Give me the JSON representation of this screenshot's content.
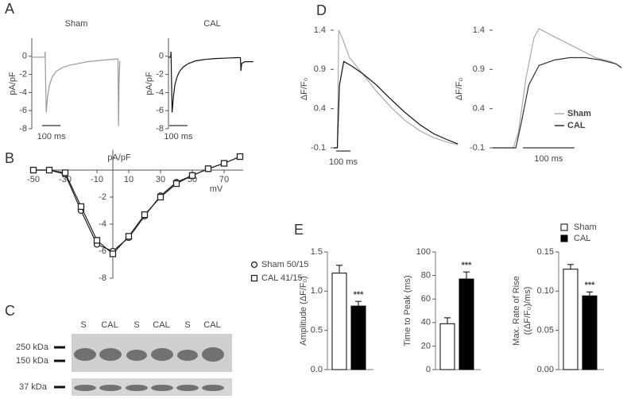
{
  "panel_labels": [
    "A",
    "B",
    "C",
    "D",
    "E"
  ],
  "blot": {
    "lanes": [
      "S",
      "CAL",
      "S",
      "CAL",
      "S",
      "CAL"
    ],
    "markers": [
      "250 kDa",
      "150 kDa",
      "37 kDa"
    ]
  },
  "chart_data": [
    {
      "type": "trace",
      "title": "Sham",
      "ylabel": "pA/pF",
      "axes": true,
      "xlim": [
        0,
        480
      ],
      "ylim": [
        -8,
        2
      ],
      "yticks": [
        0,
        -2,
        -4,
        -6,
        -8
      ],
      "series": [
        {
          "color": "#9a9a9a",
          "x": [
            0,
            70,
            72,
            75,
            78,
            85,
            95,
            110,
            130,
            160,
            200,
            250,
            300,
            350,
            400,
            460,
            465,
            468,
            471,
            475
          ],
          "values": [
            -0.1,
            -0.1,
            0.5,
            -3,
            -6.2,
            -4.5,
            -3.2,
            -2.3,
            -1.7,
            -1.3,
            -1.0,
            -0.8,
            -0.6,
            -0.5,
            -0.4,
            -0.3,
            -0.3,
            -7.7,
            -2.5,
            -0.5
          ]
        }
      ],
      "scale_bar": {
        "value": 100,
        "label": "100 ms"
      }
    },
    {
      "type": "trace",
      "title": "CAL",
      "ylabel": "pA/pF",
      "axes": true,
      "xlim": [
        0,
        480
      ],
      "ylim": [
        -8,
        2
      ],
      "yticks": [
        0,
        -2,
        -4,
        -6,
        -8
      ],
      "series": [
        {
          "color": "#111111",
          "x": [
            0,
            12,
            14,
            17,
            20,
            27,
            35,
            45,
            60,
            80,
            110,
            150,
            200,
            260,
            320,
            380,
            395,
            398,
            402,
            420,
            465
          ],
          "values": [
            -0.1,
            -0.1,
            0.5,
            -3,
            -6.2,
            -4.5,
            -3.2,
            -2.4,
            -1.7,
            -1.2,
            -0.8,
            -0.5,
            -0.35,
            -0.25,
            -0.2,
            -0.15,
            -0.15,
            -1.6,
            -0.8,
            -0.6,
            -0.6
          ]
        }
      ],
      "scale_bar": {
        "value": 100,
        "label": "100 ms"
      }
    },
    {
      "type": "scatter-line",
      "ylabel": "pA/pF",
      "xlabel": "mV",
      "x": [
        -50,
        -40,
        -30,
        -20,
        -10,
        0,
        10,
        20,
        30,
        40,
        50,
        60,
        70,
        80
      ],
      "xlim": [
        -50,
        80
      ],
      "xticks": [
        -50,
        -30,
        -10,
        10,
        30,
        50,
        70
      ],
      "ylim": [
        -8,
        1.5
      ],
      "yticks": [
        -2,
        -4,
        -6,
        -8
      ],
      "series": [
        {
          "name": "Sham 50/15",
          "marker": "circle",
          "color": "#222222",
          "values": [
            0,
            0,
            -0.3,
            -3.0,
            -5.5,
            -6.0,
            -5.0,
            -3.4,
            -1.9,
            -0.9,
            -0.4,
            0.1,
            0.5,
            1.0
          ]
        },
        {
          "name": "CAL 41/15",
          "marker": "square",
          "color": "#222222",
          "values": [
            0,
            0,
            -0.2,
            -2.7,
            -5.2,
            -6.2,
            -4.9,
            -3.3,
            -2.0,
            -1.0,
            -0.4,
            0.1,
            0.5,
            1.0
          ]
        }
      ]
    },
    {
      "type": "trace",
      "ylabel": "ΔF/F₀",
      "axes": false,
      "xlim": [
        0,
        880
      ],
      "ylim": [
        -0.1,
        1.4
      ],
      "yticks": [
        -0.1,
        0.4,
        0.9,
        1.4
      ],
      "series": [
        {
          "color": "#aaaaaa",
          "x": [
            0,
            25,
            35,
            60,
            110,
            200,
            300,
            400,
            500,
            600,
            700,
            800,
            870
          ],
          "values": [
            -0.1,
            -0.1,
            1.4,
            1.3,
            1.05,
            0.85,
            0.62,
            0.42,
            0.25,
            0.12,
            0.03,
            -0.03,
            -0.06
          ]
        },
        {
          "color": "#111111",
          "x": [
            0,
            25,
            40,
            70,
            120,
            200,
            300,
            400,
            500,
            600,
            700,
            800,
            870
          ],
          "values": [
            -0.1,
            -0.1,
            0.7,
            1.0,
            0.95,
            0.85,
            0.7,
            0.52,
            0.35,
            0.2,
            0.08,
            0,
            -0.05
          ]
        }
      ],
      "scale_bar": {
        "value": 100,
        "label": "100 ms"
      }
    },
    {
      "type": "trace",
      "ylabel": "ΔF/F₀",
      "axes": false,
      "xlim": [
        0,
        250
      ],
      "ylim": [
        -0.1,
        1.4
      ],
      "yticks": [
        -0.1,
        0.4,
        0.9,
        1.4
      ],
      "series": [
        {
          "name": "Sham",
          "color": "#aaaaaa",
          "x": [
            0,
            40,
            50,
            65,
            80,
            90,
            110,
            140,
            170,
            200,
            230,
            250
          ],
          "values": [
            -0.1,
            -0.1,
            0.1,
            0.8,
            1.3,
            1.42,
            1.35,
            1.25,
            1.15,
            1.05,
            1.0,
            0.93
          ]
        },
        {
          "name": "CAL",
          "color": "#333333",
          "x": [
            0,
            45,
            55,
            70,
            90,
            120,
            150,
            180,
            210,
            240,
            250
          ],
          "values": [
            -0.1,
            -0.1,
            0.2,
            0.7,
            0.95,
            1.02,
            1.05,
            1.05,
            1.02,
            0.97,
            0.92
          ]
        }
      ],
      "scale_bar": {
        "value": 100,
        "label": "100 ms"
      }
    },
    {
      "type": "bar",
      "ylabel": "Amplitude (ΔF/F₀)",
      "ylim": [
        0,
        1.5
      ],
      "yticks": [
        {
          "value": 0,
          "label": "0.0"
        },
        0.5,
        {
          "value": 1,
          "label": "1.0"
        },
        1.5
      ],
      "annotation": "***",
      "series": [
        {
          "color": "#ffffff",
          "values": [
            1.23
          ],
          "errors": [
            0.1
          ]
        },
        {
          "color": "#000000",
          "values": [
            0.81
          ],
          "errors": [
            0.06
          ]
        }
      ]
    },
    {
      "type": "bar",
      "ylabel": "Time to Peak (ms)",
      "ylim": [
        0,
        100
      ],
      "yticks": [
        0,
        20,
        40,
        60,
        80,
        100
      ],
      "annotation": "***",
      "series": [
        {
          "color": "#ffffff",
          "values": [
            39
          ],
          "errors": [
            5
          ]
        },
        {
          "color": "#000000",
          "values": [
            77
          ],
          "errors": [
            6
          ]
        }
      ]
    },
    {
      "type": "bar",
      "ylabel": [
        "Max. Rate of Rise",
        "((ΔF/F₀)/ms)"
      ],
      "ylim": [
        0,
        0.15
      ],
      "yticks": [
        {
          "value": 0,
          "label": "0.00"
        },
        {
          "value": 0.05,
          "label": "0.05"
        },
        {
          "value": 0.1,
          "label": "0.10"
        },
        {
          "value": 0.15,
          "label": "0.15"
        }
      ],
      "annotation": "***",
      "series": [
        {
          "name": "Sham",
          "color": "#ffffff",
          "values": [
            0.128
          ],
          "errors": [
            0.006
          ]
        },
        {
          "name": "CAL",
          "color": "#000000",
          "values": [
            0.094
          ],
          "errors": [
            0.005
          ]
        }
      ]
    }
  ]
}
